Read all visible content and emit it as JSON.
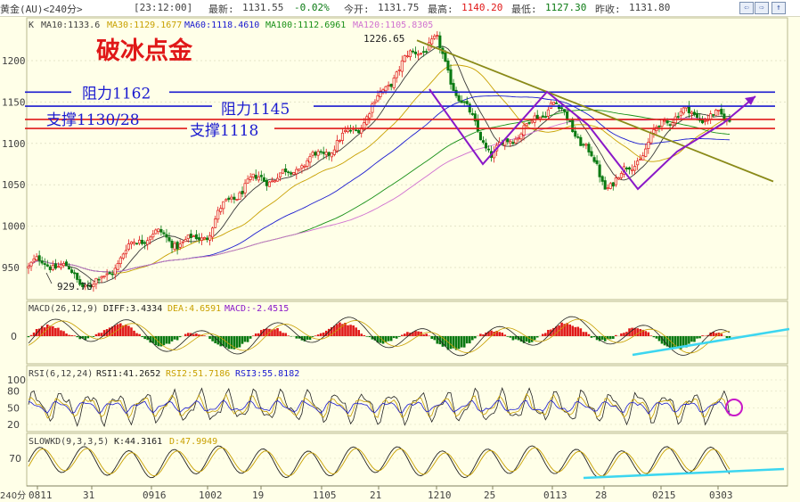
{
  "header": {
    "symbol": "黄金(AU)<240分>",
    "time": "[23:12:00]",
    "latest_label": "最新:",
    "latest": "1131.55",
    "change": "-0.02%",
    "open_label": "今开:",
    "open": "1131.75",
    "high_label": "最高:",
    "high": "1140.20",
    "low_label": "最低:",
    "low": "1127.30",
    "prev_label": "昨收:",
    "prev": "1131.80"
  },
  "ma_legend": {
    "k": "K",
    "ma10": "MA10:1133.6",
    "ma30": "MA30:1129.1677",
    "ma60": "MA60:1118.4610",
    "ma100": "MA100:1112.6961",
    "ma120": "MA120:1105.8305"
  },
  "watermark": "破冰点金",
  "annotations": {
    "resistance_1162": "阻力1162",
    "resistance_1145": "阻力1145",
    "support_1130": "支撑1130/28",
    "support_1118": "支撑1118",
    "peak_label": "1226.65",
    "trough_label": "929.70"
  },
  "indicators": {
    "macd": "MACD(26,12,9)",
    "macd_diff": "DIFF:3.4334",
    "macd_dea": "DEA:4.6591",
    "macd_val": "MACD:-2.4515",
    "rsi": "RSI(6,12,24)",
    "rsi1": "RSI1:41.2652",
    "rsi2": "RSI2:51.7186",
    "rsi3": "RSI3:55.8182",
    "kd": "SLOWKD(9,3,3,5)",
    "kd_k": "K:44.3161",
    "kd_d": "D:47.9949"
  },
  "period_label": "240分",
  "chart_data": [
    {
      "type": "candlestick",
      "title": "黄金(AU)<240分>",
      "ylim": [
        925,
        1235
      ],
      "y_ticks": [
        950,
        1000,
        1050,
        1100,
        1150,
        1200
      ],
      "x_tick_labels": [
        "0811",
        "31",
        "0916",
        "1002",
        "19",
        "1105",
        "21",
        "1210",
        "25",
        "0113",
        "28",
        "0215",
        "0303"
      ],
      "horizontal_levels": [
        {
          "label": "阻力1162",
          "value": 1162,
          "color": "#1a1ad0"
        },
        {
          "label": "阻力1145",
          "value": 1145,
          "color": "#1a1ad0"
        },
        {
          "label": "支撑1130/28",
          "value": 1129,
          "color": "#e01818"
        },
        {
          "label": "支撑1118",
          "value": 1118,
          "color": "#e01818"
        }
      ],
      "price_path": [
        {
          "x": "0811",
          "y": 950
        },
        {
          "x": "31",
          "y": 936
        },
        {
          "x": "0916",
          "y": 985
        },
        {
          "x": "1002",
          "y": 992
        },
        {
          "x": "19",
          "y": 1065
        },
        {
          "x": "1105",
          "y": 1075
        },
        {
          "x": "21",
          "y": 1160
        },
        {
          "x": "1210",
          "y": 1226.65
        },
        {
          "x": "25",
          "y": 1075
        },
        {
          "x": "0113",
          "y": 1160
        },
        {
          "x": "28",
          "y": 1045
        },
        {
          "x": "0215",
          "y": 1120
        },
        {
          "x": "0303",
          "y": 1140
        }
      ],
      "peak": 1226.65,
      "trough": 929.7
    },
    {
      "type": "macd",
      "name": "MACD(26,12,9)",
      "diff": 3.4334,
      "dea": 4.6591,
      "macd": -2.4515,
      "y_ticks": [
        0
      ]
    },
    {
      "type": "rsi",
      "name": "RSI(6,12,24)",
      "rsi1": 41.2652,
      "rsi2": 51.7186,
      "rsi3": 55.8182,
      "y_ticks": [
        20,
        50,
        80,
        100
      ]
    },
    {
      "type": "slowkd",
      "name": "SLOWKD(9,3,3,5)",
      "k": 44.3161,
      "d": 47.9949,
      "y_ticks": [
        70
      ]
    }
  ],
  "colors": {
    "background": "#ffffe8",
    "bull": "#e01818",
    "bear": "#0a7a12",
    "resistance": "#1a1ad0",
    "support": "#e01818",
    "trendline": "#8a8a18",
    "pattern": "#8a18c8",
    "cyan_trend": "#3cd6f0"
  }
}
